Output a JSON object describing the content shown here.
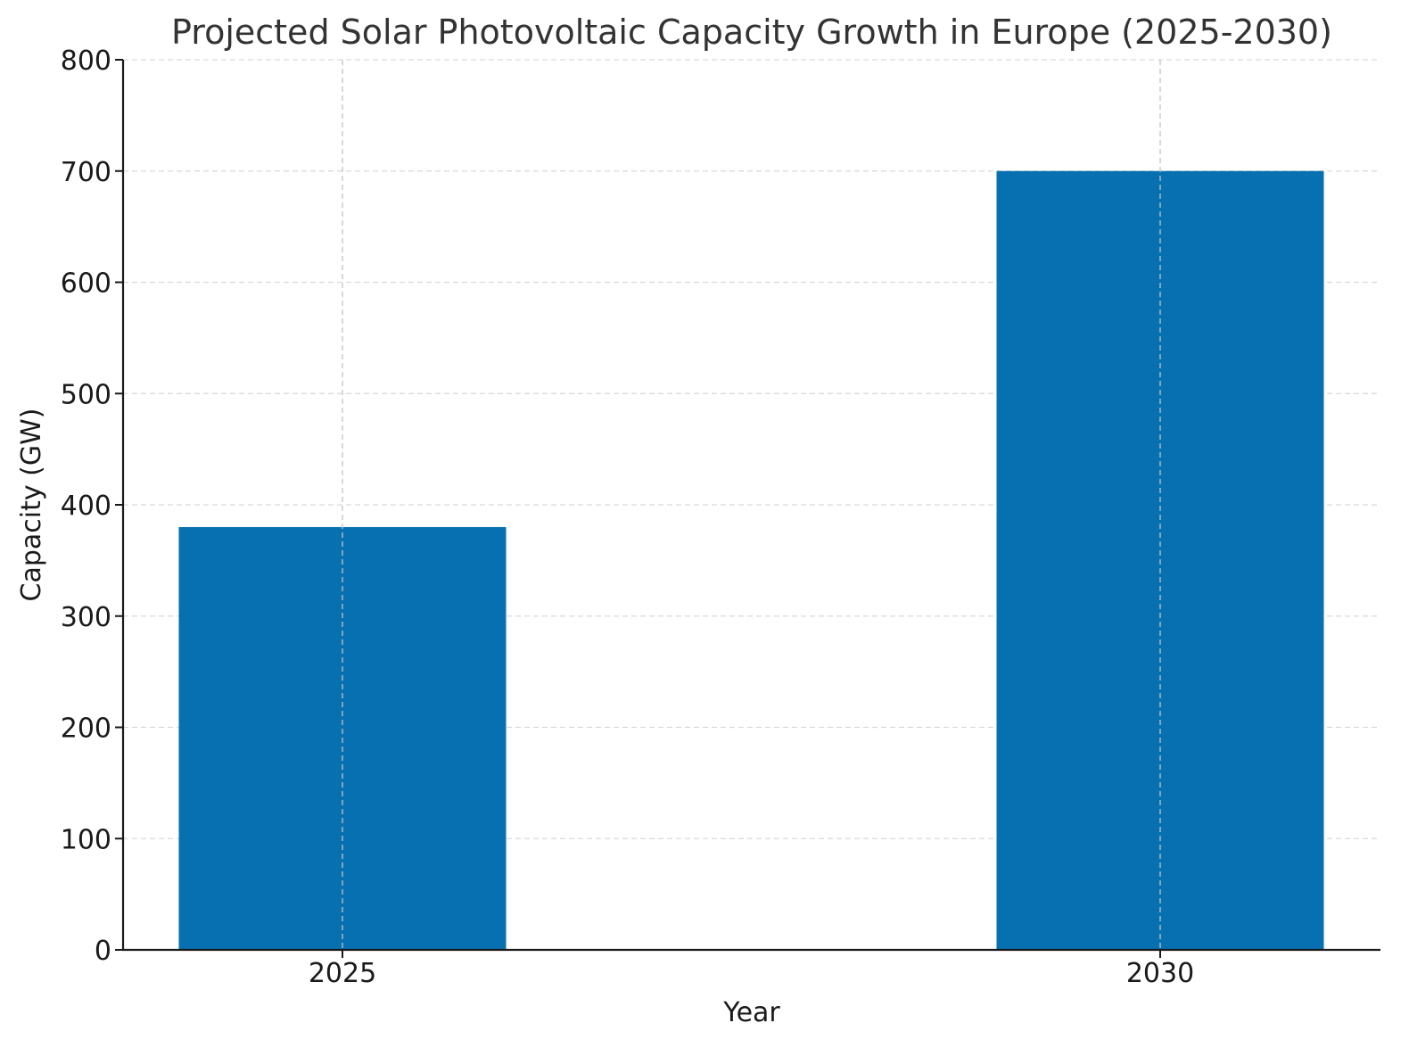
{
  "chart_data": {
    "type": "bar",
    "title": "Projected Solar Photovoltaic Capacity Growth in Europe (2025-2030)",
    "xlabel": "Year",
    "ylabel": "Capacity (GW)",
    "categories": [
      "2025",
      "2030"
    ],
    "values": [
      380,
      700
    ],
    "ylim": [
      0,
      800
    ],
    "yticks": [
      0,
      100,
      200,
      300,
      400,
      500,
      600,
      700,
      800
    ],
    "grid": true,
    "bar_color": "#0770b0"
  }
}
